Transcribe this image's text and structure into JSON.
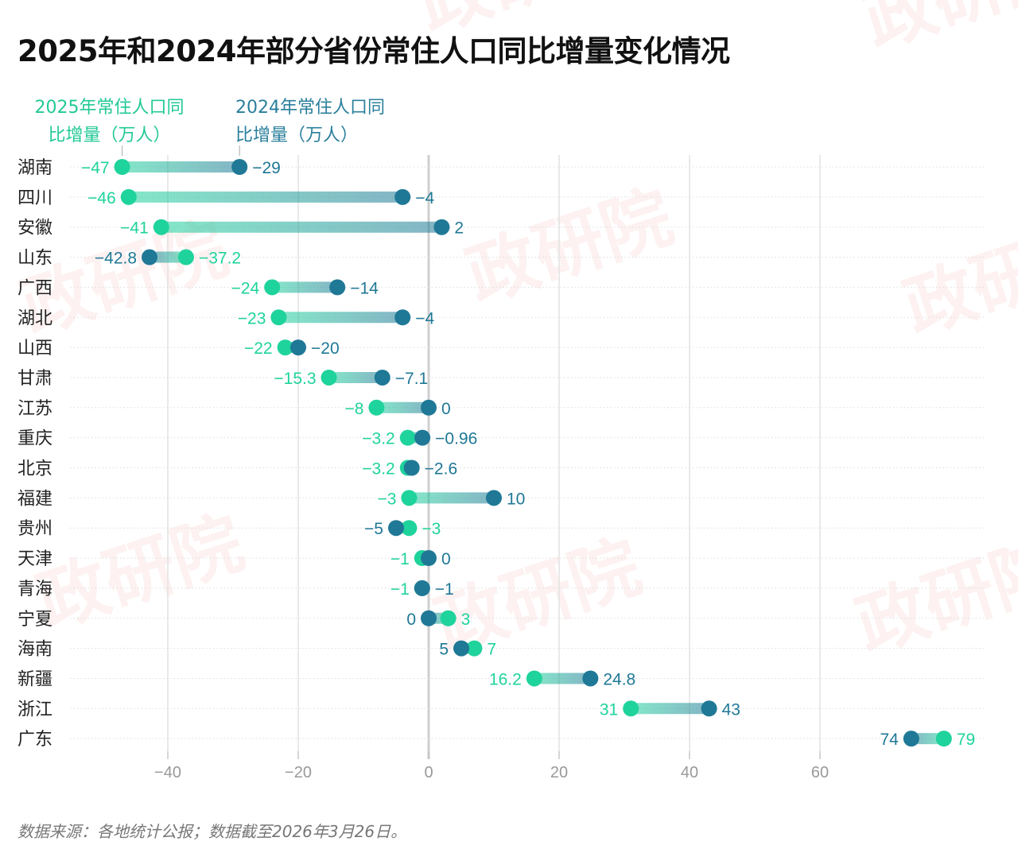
{
  "title": "2025年和2024年部分省份常住人口同比增量变化情况",
  "footnote": "数据来源：各地统计公报；数据截至2026年3月26日。",
  "watermark": "政研院",
  "colors": {
    "s2025": "#1fd39c",
    "s2024": "#1f7896",
    "grid": "#e2e2e2",
    "zero": "#cfcfcf"
  },
  "chart_data": {
    "type": "dumbbell",
    "title": "2025年和2024年部分省份常住人口同比增量变化情况",
    "xlim": [
      -50,
      80
    ],
    "xticks": [
      -40,
      -20,
      0,
      20,
      40,
      60
    ],
    "grid": true,
    "categories": [
      "湖南",
      "四川",
      "安徽",
      "山东",
      "广西",
      "湖北",
      "山西",
      "甘肃",
      "江苏",
      "重庆",
      "北京",
      "福建",
      "贵州",
      "天津",
      "青海",
      "宁夏",
      "海南",
      "新疆",
      "浙江",
      "广东"
    ],
    "series": [
      {
        "name": "2025年常住人口同比增量（万人）",
        "line1": "2025年常住人口同",
        "line2": "比增量（万人）",
        "values": [
          -47,
          -46,
          -41,
          -37.2,
          -24,
          -23,
          -22,
          -15.3,
          -8,
          -3.2,
          -3.2,
          -3,
          -3,
          -1,
          -1,
          3,
          7,
          16.2,
          31,
          79
        ]
      },
      {
        "name": "2024年常住人口同比增量（万人）",
        "line1": "2024年常住人口同",
        "line2": "比增量（万人）",
        "values": [
          -29,
          -4,
          2,
          -42.8,
          -14,
          -4,
          -20,
          -7.1,
          0,
          -0.96,
          -2.6,
          10,
          -5,
          0,
          -1,
          0,
          5,
          24.8,
          43,
          74
        ]
      }
    ]
  }
}
